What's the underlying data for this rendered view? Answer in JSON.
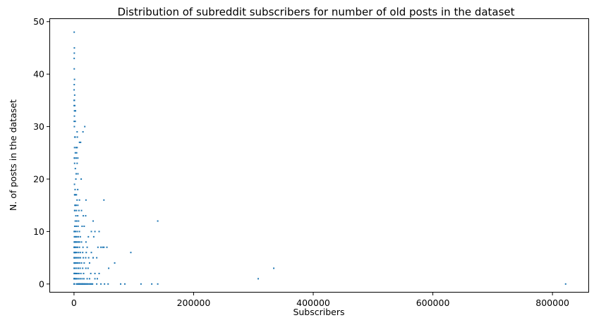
{
  "chart_data": {
    "type": "scatter",
    "title": "Distribution of subreddit subscribers for number of old posts in the dataset",
    "xlabel": "Subscribers",
    "ylabel": "N. of posts in the dataset",
    "xlim": [
      -40000,
      860000
    ],
    "ylim": [
      -1.5,
      50.5
    ],
    "xticks": [
      0,
      200000,
      400000,
      600000,
      800000
    ],
    "xtick_labels": [
      "0",
      "200000",
      "400000",
      "600000",
      "800000"
    ],
    "yticks": [
      0,
      10,
      20,
      30,
      40,
      50
    ],
    "ytick_labels": [
      "0",
      "10",
      "20",
      "30",
      "40",
      "50"
    ],
    "grid": false,
    "color": "#1f77b4",
    "series": [
      {
        "x": [
          200,
          400,
          300,
          500,
          200,
          600,
          100,
          300,
          400,
          800,
          500,
          300,
          1200,
          400,
          200,
          600,
          900,
          300,
          500,
          1500,
          1800,
          700,
          200,
          400,
          1000,
          600,
          300,
          2500,
          200,
          1300,
          500,
          800,
          400,
          2800,
          900,
          600,
          3200,
          300,
          700,
          1000,
          5000,
          1500,
          3500,
          2000,
          4200,
          6800,
          7600,
          8400,
          9300,
          10200,
          11000,
          12500,
          13600,
          14800,
          16000,
          17200,
          18800,
          20200,
          22000,
          24100,
          26500,
          28500,
          30000,
          200,
          800,
          2200,
          5200,
          7800,
          10500,
          13500,
          16500,
          22000,
          26000,
          900,
          3000,
          5600,
          8200,
          11500,
          16000,
          28000,
          1500,
          4200,
          7200,
          10200,
          14500,
          19800,
          23500,
          35000,
          42000,
          800,
          2400,
          4300,
          6600,
          9200,
          12500,
          17000,
          26000,
          58000,
          1800,
          3800,
          5800,
          8200,
          10800,
          15500,
          19500,
          24500,
          32000,
          38000,
          45000,
          50000,
          1000,
          2500,
          4600,
          7500,
          10500,
          14500,
          20500,
          29000,
          35000,
          39000,
          68000,
          600,
          2100,
          4000,
          6000,
          9100,
          15000,
          22000,
          40000,
          48000,
          55000,
          95000,
          1500,
          3300,
          5200,
          7400,
          9200,
          12500,
          20000,
          33000,
          1800,
          4500,
          7100,
          10500,
          24000,
          900,
          2600,
          5400,
          9000,
          29000,
          35000,
          42000,
          1200,
          3800,
          6700,
          13500,
          17000,
          140000,
          2100,
          4600,
          7600,
          32000,
          1000,
          3100,
          6200,
          15500,
          19500,
          1500,
          4100,
          8200,
          12500,
          1400,
          3600,
          6400,
          2200,
          5100,
          9100,
          20000,
          50000,
          1600,
          3000,
          1000,
          4000,
          1800,
          6200,
          1600,
          800,
          3100,
          12000,
          3600,
          6500,
          2200,
          5200,
          1000,
          1100,
          3800,
          6400,
          500,
          2200,
          4400,
          5200,
          900,
          3600,
          9200,
          11000,
          2000,
          5600,
          1200,
          5200,
          15000,
          18000,
          600,
          2000,
          300,
          1700,
          2500,
          700,
          800,
          1300,
          200,
          700,
          200,
          400,
          1100,
          200,
          400,
          800,
          400,
          300,
          500,
          600,
          300,
          4200,
          6800,
          9000,
          12500,
          14500,
          17800,
          21800,
          26500,
          31000,
          38000,
          45000,
          51000,
          32000,
          57000,
          78000,
          85000,
          112000,
          130000,
          140000,
          308000,
          334000,
          822000
        ],
        "y": [
          0,
          0,
          0,
          0,
          1,
          1,
          1,
          1,
          1,
          1,
          2,
          2,
          2,
          3,
          3,
          3,
          3,
          4,
          4,
          4,
          4,
          5,
          5,
          5,
          5,
          6,
          6,
          6,
          7,
          7,
          7,
          7,
          8,
          8,
          8,
          9,
          9,
          10,
          10,
          10,
          0,
          1,
          1,
          2,
          2,
          0,
          0,
          0,
          0,
          0,
          0,
          0,
          0,
          0,
          0,
          0,
          0,
          0,
          0,
          0,
          0,
          0,
          0,
          1,
          1,
          1,
          1,
          1,
          1,
          1,
          1,
          1,
          1,
          2,
          2,
          2,
          2,
          2,
          2,
          2,
          3,
          3,
          3,
          3,
          3,
          3,
          3,
          2,
          2,
          4,
          4,
          4,
          4,
          4,
          4,
          4,
          4,
          3,
          5,
          5,
          5,
          5,
          5,
          5,
          5,
          5,
          5,
          5,
          7,
          7,
          6,
          6,
          6,
          6,
          6,
          6,
          6,
          6,
          1,
          1,
          4,
          7,
          7,
          7,
          7,
          7,
          7,
          7,
          7,
          7,
          7,
          6,
          8,
          8,
          8,
          8,
          8,
          8,
          8,
          9,
          9,
          9,
          9,
          9,
          9,
          10,
          10,
          10,
          10,
          10,
          10,
          10,
          11,
          11,
          11,
          11,
          11,
          12,
          12,
          12,
          12,
          12,
          14,
          13,
          13,
          13,
          13,
          15,
          14,
          14,
          14,
          14,
          15,
          15,
          15,
          16,
          16,
          16,
          16,
          17,
          17,
          17,
          17,
          18,
          18,
          17,
          19,
          20,
          20,
          21,
          21,
          22,
          23,
          23,
          24,
          24,
          24,
          24,
          25,
          25,
          26,
          26,
          26,
          27,
          27,
          28,
          28,
          28,
          29,
          29,
          30,
          30,
          31,
          31,
          33,
          33,
          32,
          33,
          34,
          34,
          35,
          35,
          35,
          36,
          37,
          38,
          39,
          41,
          43,
          44,
          45,
          48,
          0,
          0,
          0,
          0,
          0,
          0,
          0,
          0,
          0,
          0,
          0,
          0,
          5,
          0,
          0,
          0,
          0,
          0,
          0,
          1,
          3,
          0
        ]
      }
    ]
  }
}
